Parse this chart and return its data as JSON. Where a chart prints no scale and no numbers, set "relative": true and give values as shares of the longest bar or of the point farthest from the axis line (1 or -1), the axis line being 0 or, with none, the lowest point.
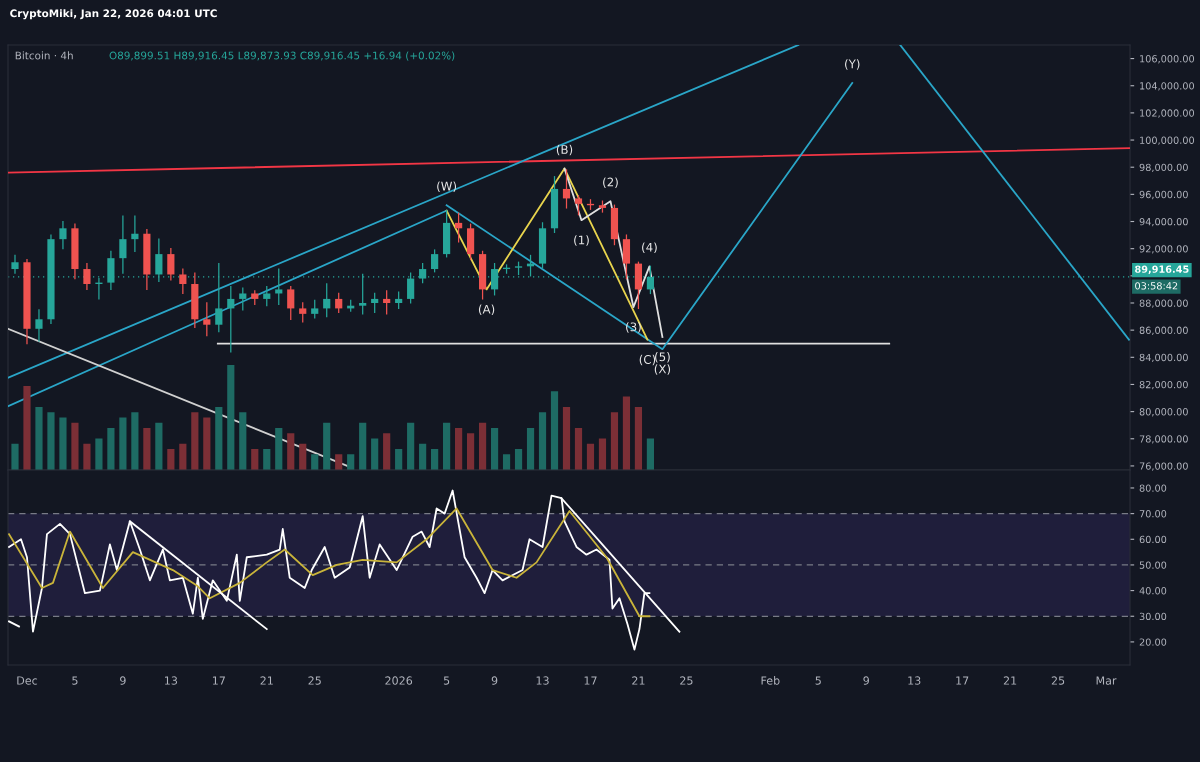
{
  "chart_data": [
    {
      "type": "candlestick",
      "title": "Bitcoin · 4h",
      "subtitle": "O89,899.51 H89,916.45 L89,873.93 C89,916.45 +16.94 (+0.02%)",
      "x": [
        "2025-11-30",
        "2025-12-01",
        "2025-12-02",
        "2025-12-03",
        "2025-12-04",
        "2025-12-05",
        "2025-12-06",
        "2025-12-07",
        "2025-12-08",
        "2025-12-09",
        "2025-12-10",
        "2025-12-11",
        "2025-12-12",
        "2025-12-13",
        "2025-12-14",
        "2025-12-15",
        "2025-12-16",
        "2025-12-17",
        "2025-12-18",
        "2025-12-19",
        "2025-12-20",
        "2025-12-21",
        "2025-12-22",
        "2025-12-23",
        "2025-12-24",
        "2025-12-25",
        "2025-12-26",
        "2025-12-27",
        "2025-12-28",
        "2025-12-29",
        "2025-12-30",
        "2025-12-31",
        "2026-01-01",
        "2026-01-02",
        "2026-01-03",
        "2026-01-04",
        "2026-01-05",
        "2026-01-06",
        "2026-01-07",
        "2026-01-08",
        "2026-01-09",
        "2026-01-10",
        "2026-01-11",
        "2026-01-12",
        "2026-01-13",
        "2026-01-14",
        "2026-01-15",
        "2026-01-16",
        "2026-01-17",
        "2026-01-18",
        "2026-01-19",
        "2026-01-20",
        "2026-01-21",
        "2026-01-22"
      ],
      "ohlc": [
        [
          90500,
          91500,
          90200,
          91000
        ],
        [
          91000,
          91200,
          85000,
          86100
        ],
        [
          86100,
          87500,
          85200,
          86800
        ],
        [
          86800,
          93000,
          86500,
          92700
        ],
        [
          92700,
          94000,
          92000,
          93500
        ],
        [
          93500,
          93800,
          89800,
          90500
        ],
        [
          90500,
          90900,
          89000,
          89400
        ],
        [
          89400,
          89800,
          88300,
          89500
        ],
        [
          89500,
          91800,
          89000,
          91300
        ],
        [
          91300,
          94400,
          90200,
          92700
        ],
        [
          92700,
          94400,
          91800,
          93100
        ],
        [
          93100,
          93400,
          89000,
          90100
        ],
        [
          90100,
          92700,
          89600,
          91600
        ],
        [
          91600,
          92000,
          89700,
          90100
        ],
        [
          90100,
          90500,
          88700,
          89400
        ],
        [
          89400,
          90200,
          86200,
          86800
        ],
        [
          86800,
          88000,
          85600,
          86400
        ],
        [
          86400,
          90900,
          85900,
          87600
        ],
        [
          87600,
          89200,
          84400,
          88300
        ],
        [
          88300,
          89100,
          87500,
          88700
        ],
        [
          88700,
          88900,
          87900,
          88300
        ],
        [
          88300,
          89200,
          87800,
          88700
        ],
        [
          88700,
          90500,
          87900,
          89000
        ],
        [
          89000,
          89200,
          86800,
          87600
        ],
        [
          87600,
          88000,
          86600,
          87200
        ],
        [
          87200,
          88200,
          86900,
          87600
        ],
        [
          87600,
          89400,
          87000,
          88300
        ],
        [
          88300,
          88700,
          87300,
          87600
        ],
        [
          87600,
          88200,
          87400,
          87800
        ],
        [
          87800,
          90100,
          87200,
          88000
        ],
        [
          88000,
          88700,
          87300,
          88300
        ],
        [
          88300,
          88900,
          87200,
          88000
        ],
        [
          88000,
          88800,
          87600,
          88300
        ],
        [
          88300,
          90200,
          88000,
          89800
        ],
        [
          89800,
          90900,
          89500,
          90500
        ],
        [
          90500,
          91900,
          90300,
          91600
        ],
        [
          91600,
          94800,
          91400,
          93900
        ],
        [
          93900,
          94600,
          92500,
          93500
        ],
        [
          93500,
          93800,
          91200,
          91600
        ],
        [
          91600,
          91800,
          88300,
          89000
        ],
        [
          89000,
          90900,
          88600,
          90500
        ],
        [
          90500,
          90800,
          90200,
          90600
        ],
        [
          90600,
          91000,
          90100,
          90700
        ],
        [
          90700,
          91500,
          90000,
          90900
        ],
        [
          90900,
          93900,
          90600,
          93500
        ],
        [
          93500,
          97300,
          93200,
          96400
        ],
        [
          96400,
          97800,
          95000,
          95700
        ],
        [
          95700,
          95900,
          94500,
          95300
        ],
        [
          95300,
          95600,
          94900,
          95200
        ],
        [
          95200,
          95500,
          94700,
          95000
        ],
        [
          95000,
          95200,
          92300,
          92700
        ],
        [
          92700,
          93000,
          89800,
          90900
        ],
        [
          90900,
          91000,
          87600,
          89000
        ],
        [
          89000,
          90700,
          88700,
          89916.45
        ]
      ],
      "colors": [
        "#26a69a",
        "#ef5350",
        "#26a69a",
        "#26a69a",
        "#26a69a",
        "#ef5350",
        "#ef5350",
        "#26a69a",
        "#26a69a",
        "#26a69a",
        "#26a69a",
        "#ef5350",
        "#26a69a",
        "#ef5350",
        "#ef5350",
        "#ef5350",
        "#ef5350",
        "#26a69a",
        "#26a69a",
        "#26a69a",
        "#ef5350",
        "#26a69a",
        "#26a69a",
        "#ef5350",
        "#ef5350",
        "#26a69a",
        "#26a69a",
        "#ef5350",
        "#26a69a",
        "#26a69a",
        "#26a69a",
        "#ef5350",
        "#26a69a",
        "#26a69a",
        "#26a69a",
        "#26a69a",
        "#26a69a",
        "#ef5350",
        "#ef5350",
        "#ef5350",
        "#26a69a",
        "#26a69a",
        "#26a69a",
        "#26a69a",
        "#26a69a",
        "#26a69a",
        "#ef5350",
        "#ef5350",
        "#ef5350",
        "#ef5350",
        "#ef5350",
        "#ef5350",
        "#ef5350",
        "#26a69a"
      ],
      "series": [
        {
          "type": "line",
          "color": "#f23645",
          "x": [
            "2025-11-29T10:00",
            "2026-03-03T00:00"
          ],
          "values": [
            97600,
            99400
          ]
        },
        {
          "type": "line",
          "color": "#e0e0e0",
          "x": [
            "2025-12-16T22:00",
            "2026-02-10T22:00"
          ],
          "values": [
            85000,
            85000
          ]
        },
        {
          "type": "line",
          "color": "#2aa6c8",
          "x": [
            "2025-11-29T10:00",
            "2026-02-03T08:00"
          ],
          "values": [
            82500,
            107000
          ]
        },
        {
          "type": "line",
          "color": "#2aa6c8",
          "x": [
            "2025-11-29T10:00",
            "2026-01-05T00:00"
          ],
          "values": [
            80400,
            94800
          ]
        },
        {
          "type": "line",
          "color": "#d0d0d0",
          "x": [
            "2025-11-29T10:00",
            "2025-12-28T00:00"
          ],
          "values": [
            86100,
            75900
          ]
        },
        {
          "type": "line",
          "color": "#2aa6c8",
          "x": [
            "2026-01-05T00:00",
            "2026-01-23T00:00",
            "2026-02-07T20:00"
          ],
          "values": [
            95200,
            84600,
            104200
          ]
        },
        {
          "type": "line",
          "color": "#2aa6c8",
          "x": [
            "2026-02-11T20:00",
            "2026-03-02T22:00"
          ],
          "values": [
            107000,
            85300
          ]
        },
        {
          "type": "line",
          "color": "#e8d44d",
          "x": [
            "2026-01-05T00:00",
            "2026-01-08T08:00",
            "2026-01-14T20:00",
            "2026-01-21T18:00"
          ],
          "values": [
            94800,
            89000,
            97900,
            85300
          ]
        },
        {
          "type": "line",
          "color": "#e0e0e0",
          "x": [
            "2026-01-14T20:00",
            "2026-01-16T06:00",
            "2026-01-18T16:00",
            "2026-01-20T14:00",
            "2026-01-21T22:00",
            "2026-01-23T00:00"
          ],
          "values": [
            97900,
            94100,
            95500,
            87700,
            90700,
            85500
          ]
        }
      ],
      "annotations": [
        "CryptoMiki, Jan 22, 2026 04:01 UTC",
        "03:58:42",
        {
          "text": "(W)",
          "x": "2026-01-05T00:00",
          "y": 95200
        },
        {
          "text": "(A)",
          "x": "2026-01-08T08:00",
          "y": 89000
        },
        {
          "text": "(B)",
          "x": "2026-01-14T20:00",
          "y": 97900
        },
        {
          "text": "(C)",
          "x": "2026-01-21T18:00",
          "y": 85300
        },
        {
          "text": "(1)",
          "x": "2026-01-16T06:00",
          "y": 94100
        },
        {
          "text": "(2)",
          "x": "2026-01-18T16:00",
          "y": 95500
        },
        {
          "text": "(3)",
          "x": "2026-01-20T14:00",
          "y": 87700
        },
        {
          "text": "(4)",
          "x": "2026-01-21T22:00",
          "y": 90700
        },
        {
          "text": "(5)",
          "x": "2026-01-23T00:00",
          "y": 85500
        },
        {
          "text": "(X)",
          "x": "2026-01-23T00:00",
          "y": 84600
        },
        {
          "text": "(Y)",
          "x": "2026-02-07T20:00",
          "y": 104200
        }
      ],
      "ref_lines": [
        {
          "axis": "y",
          "value": 89916.45,
          "label": "89,916.45",
          "color": "#26a69a",
          "line_style": "dotted"
        }
      ],
      "xlim": [
        "2025-11-29T10:00",
        "2026-03-03T00:00"
      ],
      "ylim": [
        75700,
        107000
      ],
      "yticks": [
        {
          "value": 76000,
          "label": "76,000.00"
        },
        {
          "value": 78000,
          "label": "78,000.00"
        },
        {
          "value": 80000,
          "label": "80,000.00"
        },
        {
          "value": 82000,
          "label": "82,000.00"
        },
        {
          "value": 84000,
          "label": "84,000.00"
        },
        {
          "value": 86000,
          "label": "86,000.00"
        },
        {
          "value": 88000,
          "label": "88,000.00"
        },
        {
          "value": 90000,
          "label": null
        },
        {
          "value": 92000,
          "label": "92,000.00"
        },
        {
          "value": 94000,
          "label": "94,000.00"
        },
        {
          "value": 96000,
          "label": "96,000.00"
        },
        {
          "value": 98000,
          "label": "98,000.00"
        },
        {
          "value": 100000,
          "label": "100,000.00"
        },
        {
          "value": 102000,
          "label": "102,000.00"
        },
        {
          "value": 104000,
          "label": "104,000.00"
        },
        {
          "value": 106000,
          "label": "106,000.00"
        }
      ],
      "tick_labels": "y",
      "grid": false
    },
    {
      "type": "bar",
      "relative": true,
      "tick_labels": false,
      "x": [
        "2025-11-30",
        "2025-12-01",
        "2025-12-02",
        "2025-12-03",
        "2025-12-04",
        "2025-12-05",
        "2025-12-06",
        "2025-12-07",
        "2025-12-08",
        "2025-12-09",
        "2025-12-10",
        "2025-12-11",
        "2025-12-12",
        "2025-12-13",
        "2025-12-14",
        "2025-12-15",
        "2025-12-16",
        "2025-12-17",
        "2025-12-18",
        "2025-12-19",
        "2025-12-20",
        "2025-12-21",
        "2025-12-22",
        "2025-12-23",
        "2025-12-24",
        "2025-12-25",
        "2025-12-26",
        "2025-12-27",
        "2025-12-28",
        "2025-12-29",
        "2025-12-30",
        "2025-12-31",
        "2026-01-01",
        "2026-01-02",
        "2026-01-03",
        "2026-01-04",
        "2026-01-05",
        "2026-01-06",
        "2026-01-07",
        "2026-01-08",
        "2026-01-09",
        "2026-01-10",
        "2026-01-11",
        "2026-01-12",
        "2026-01-13",
        "2026-01-14",
        "2026-01-15",
        "2026-01-16",
        "2026-01-17",
        "2026-01-18",
        "2026-01-19",
        "2026-01-20",
        "2026-01-21",
        "2026-01-22"
      ],
      "values": [
        0.25,
        0.8,
        0.6,
        0.55,
        0.5,
        0.45,
        0.25,
        0.3,
        0.4,
        0.5,
        0.55,
        0.4,
        0.45,
        0.2,
        0.25,
        0.55,
        0.5,
        0.6,
        1,
        0.55,
        0.2,
        0.2,
        0.4,
        0.35,
        0.25,
        0.15,
        0.45,
        0.15,
        0.15,
        0.45,
        0.3,
        0.35,
        0.2,
        0.45,
        0.25,
        0.2,
        0.45,
        0.4,
        0.35,
        0.45,
        0.4,
        0.15,
        0.2,
        0.4,
        0.55,
        0.75,
        0.6,
        0.4,
        0.25,
        0.3,
        0.55,
        0.7,
        0.6,
        0.3
      ],
      "colors": [
        "#1e6b64",
        "#7c2f36",
        "#1e6b64",
        "#1e6b64",
        "#1e6b64",
        "#7c2f36",
        "#7c2f36",
        "#1e6b64",
        "#1e6b64",
        "#1e6b64",
        "#1e6b64",
        "#7c2f36",
        "#1e6b64",
        "#7c2f36",
        "#7c2f36",
        "#7c2f36",
        "#7c2f36",
        "#1e6b64",
        "#1e6b64",
        "#1e6b64",
        "#7c2f36",
        "#1e6b64",
        "#1e6b64",
        "#7c2f36",
        "#7c2f36",
        "#1e6b64",
        "#1e6b64",
        "#7c2f36",
        "#1e6b64",
        "#1e6b64",
        "#1e6b64",
        "#7c2f36",
        "#1e6b64",
        "#1e6b64",
        "#1e6b64",
        "#1e6b64",
        "#1e6b64",
        "#7c2f36",
        "#7c2f36",
        "#7c2f36",
        "#1e6b64",
        "#1e6b64",
        "#1e6b64",
        "#1e6b64",
        "#1e6b64",
        "#1e6b64",
        "#7c2f36",
        "#7c2f36",
        "#7c2f36",
        "#7c2f36",
        "#7c2f36",
        "#7c2f36",
        "#7c2f36",
        "#1e6b64"
      ],
      "xlim": [
        "2025-11-29T10:00",
        "2026-03-03T00:00"
      ]
    },
    {
      "type": "line",
      "series": [
        {
          "color": "#ffffff",
          "x": [
            "2025-11-29T12:00",
            "2025-11-30T12:00",
            "2025-12-01T00:00",
            "2025-12-01T12:00",
            "2025-12-02T06:00",
            "2025-12-02T16:00",
            "2025-12-03T18:00",
            "2025-12-04T14:00",
            "2025-12-05T20:00",
            "2025-12-07T02:00",
            "2025-12-07T22:00",
            "2025-12-08T12:00",
            "2025-12-09T14:00",
            "2025-12-10T10:00",
            "2025-12-11T06:00",
            "2025-12-12T08:00",
            "2025-12-12T22:00",
            "2025-12-14T00:00",
            "2025-12-14T20:00",
            "2025-12-15T06:00",
            "2025-12-15T16:00",
            "2025-12-16T12:00",
            "2025-12-17T16:00",
            "2025-12-18T12:00",
            "2025-12-18T18:00",
            "2025-12-19T08:00",
            "2025-12-21T00:00",
            "2025-12-22T02:00",
            "2025-12-22T08:00",
            "2025-12-22T22:00",
            "2025-12-24T04:00",
            "2025-12-24T18:00",
            "2025-12-25T20:00",
            "2025-12-26T16:00",
            "2025-12-27T22:00",
            "2025-12-29T00:00",
            "2025-12-29T14:00",
            "2025-12-30T10:00",
            "2025-12-31T20:00",
            "2026-01-02T04:00",
            "2026-01-02T22:00",
            "2026-01-03T14:00",
            "2026-01-04T04:00",
            "2026-01-04T20:00",
            "2026-01-05T12:00",
            "2026-01-06T12:00",
            "2026-01-07T12:00",
            "2026-01-08T04:00",
            "2026-01-08T20:00",
            "2026-01-09T16:00",
            "2026-01-11T08:00",
            "2026-01-11T22:00",
            "2026-01-13T00:00",
            "2026-01-13T18:00",
            "2026-01-14T14:00",
            "2026-01-14T20:00",
            "2026-01-15T20:00",
            "2026-01-16T16:00",
            "2026-01-17T12:00",
            "2026-01-18T14:00",
            "2026-01-18T20:00",
            "2026-01-19T10:00",
            "2026-01-20T02:00",
            "2026-01-20T16:00",
            "2026-01-21T02:00",
            "2026-01-21T12:00",
            "2026-01-21T22:00"
          ],
          "values": [
            57,
            60,
            53,
            24,
            41,
            62,
            66,
            62,
            39,
            40,
            58,
            48,
            67,
            56,
            44,
            56,
            44,
            45,
            31,
            45,
            29,
            44,
            36,
            54,
            36,
            53,
            54,
            56,
            64,
            45,
            41,
            48,
            57,
            45,
            49,
            69,
            45,
            58,
            48,
            61,
            63,
            57,
            72,
            70,
            79,
            53,
            45,
            39,
            48,
            44,
            48,
            60,
            57,
            77,
            76,
            67,
            57,
            54,
            56,
            52,
            33,
            37,
            27,
            17,
            25,
            39,
            39
          ]
        },
        {
          "color": "#c9b43a",
          "x": [
            "2025-11-29T12:00",
            "2025-12-02T06:00",
            "2025-12-03T04:00",
            "2025-12-04T14:00",
            "2025-12-07T08:00",
            "2025-12-09T20:00",
            "2025-12-13T04:00",
            "2025-12-15T04:00",
            "2025-12-16T06:00",
            "2025-12-18T18:00",
            "2025-12-21T00:00",
            "2025-12-22T12:00",
            "2025-12-24T20:00",
            "2025-12-26T20:00",
            "2025-12-29T00:00",
            "2025-12-31T20:00",
            "2026-01-03T08:00",
            "2026-01-05T20:00",
            "2026-01-08T20:00",
            "2026-01-10T20:00",
            "2026-01-12T12:00",
            "2026-01-15T06:00",
            "2026-01-18T08:00",
            "2026-01-21T02:00",
            "2026-01-21T22:00"
          ],
          "values": [
            62,
            41,
            43,
            63,
            41,
            55,
            48,
            42,
            37,
            43,
            51,
            56,
            46,
            50,
            52,
            51,
            60,
            72,
            48,
            45,
            51,
            71,
            53,
            30,
            30
          ]
        },
        {
          "color": "#ffffff",
          "x": [
            "2025-12-09T14:00",
            "2025-12-21T00:00"
          ],
          "values": [
            67,
            25
          ]
        },
        {
          "color": "#ffffff",
          "x": [
            "2026-01-14T14:00",
            "2026-01-24T10:00"
          ],
          "values": [
            76,
            24
          ]
        },
        {
          "color": "#ffffff",
          "x": [
            "2025-11-29T12:00",
            "2025-11-30T08:00"
          ],
          "values": [
            28,
            26
          ]
        }
      ],
      "ref_lines": [
        {
          "axis": "y",
          "value": 70,
          "color": "#787b86",
          "line_style": "dashed"
        },
        {
          "axis": "y",
          "value": 50,
          "color": "#787b86",
          "line_style": "dashed"
        },
        {
          "axis": "y",
          "value": 30,
          "color": "#787b86",
          "line_style": "dashed"
        }
      ],
      "bands": [
        {
          "axis": "y",
          "from": 30,
          "to": 70,
          "color": "#1f1e3b"
        }
      ],
      "xlim": [
        "2025-11-29T10:00",
        "2026-03-03T00:00"
      ],
      "ylim": [
        11,
        87
      ],
      "xticks": [
        {
          "value": "2025-12-01",
          "label": "Dec"
        },
        {
          "value": "2025-12-05",
          "label": "5"
        },
        {
          "value": "2025-12-09",
          "label": "9"
        },
        {
          "value": "2025-12-13",
          "label": "13"
        },
        {
          "value": "2025-12-17",
          "label": "17"
        },
        {
          "value": "2025-12-21",
          "label": "21"
        },
        {
          "value": "2025-12-25",
          "label": "25"
        },
        {
          "value": "2026-01-01",
          "label": "2026"
        },
        {
          "value": "2026-01-05",
          "label": "5"
        },
        {
          "value": "2026-01-09",
          "label": "9"
        },
        {
          "value": "2026-01-13",
          "label": "13"
        },
        {
          "value": "2026-01-17",
          "label": "17"
        },
        {
          "value": "2026-01-21",
          "label": "21"
        },
        {
          "value": "2026-01-25",
          "label": "25"
        },
        {
          "value": "2026-02-01",
          "label": "Feb"
        },
        {
          "value": "2026-02-05",
          "label": "5"
        },
        {
          "value": "2026-02-09",
          "label": "9"
        },
        {
          "value": "2026-02-13",
          "label": "13"
        },
        {
          "value": "2026-02-17",
          "label": "17"
        },
        {
          "value": "2026-02-21",
          "label": "21"
        },
        {
          "value": "2026-02-25",
          "label": "25"
        },
        {
          "value": "2026-03-01",
          "label": "Mar"
        }
      ],
      "yticks": [
        {
          "value": 20,
          "label": "20.00"
        },
        {
          "value": 30,
          "label": "30.00"
        },
        {
          "value": 40,
          "label": "40.00"
        },
        {
          "value": 50,
          "label": "50.00"
        },
        {
          "value": 60,
          "label": "60.00"
        },
        {
          "value": 70,
          "label": "70.00"
        },
        {
          "value": 80,
          "label": "80.00"
        }
      ],
      "grid": false
    }
  ]
}
